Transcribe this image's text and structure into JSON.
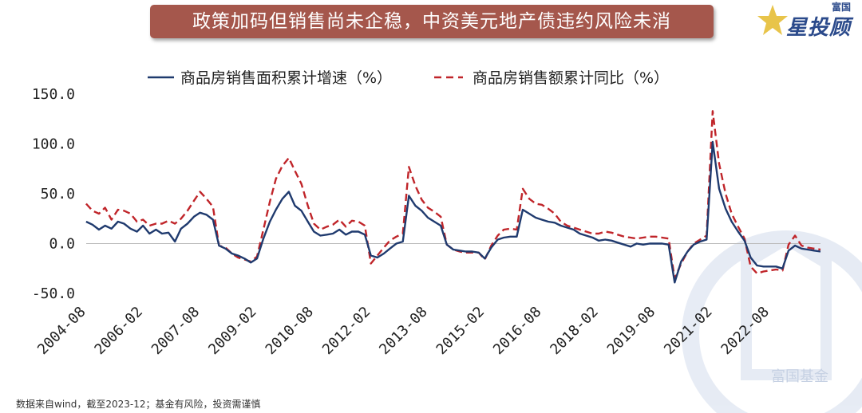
{
  "title": "政策加码但销售尚未企稳，中资美元地产债违约风险未消",
  "logo": {
    "top": "富国",
    "main": "星投顾"
  },
  "watermark": "富国基金",
  "source": "数据来自wind，截至2023-12；基金有风险，投资需谨慎",
  "chart_data": {
    "type": "line",
    "ylim": [
      -50,
      150
    ],
    "y_ticks": [
      "150.0",
      "100.0",
      "50.0",
      "0.0",
      "-50.0"
    ],
    "y_tick_values": [
      150,
      100,
      50,
      0,
      -50
    ],
    "x_tick_labels": [
      "2004-08",
      "2006-02",
      "2007-08",
      "2009-02",
      "2010-08",
      "2012-02",
      "2013-08",
      "2015-02",
      "2016-08",
      "2018-02",
      "2019-08",
      "2021-02",
      "2022-08"
    ],
    "x_tick_values": [
      2004.583,
      2006.083,
      2007.583,
      2009.083,
      2010.583,
      2012.083,
      2013.583,
      2015.083,
      2016.583,
      2018.083,
      2019.583,
      2021.083,
      2022.583
    ],
    "xlim": [
      2004.583,
      2023.92
    ],
    "legend_position": "top",
    "colors": {
      "area": "#1f3a6e",
      "sales": "#c0252a"
    },
    "series": [
      {
        "name": "商品房销售面积累计增速（%）",
        "style": "solid",
        "x": [
          2004.58,
          2004.75,
          2004.92,
          2005.08,
          2005.25,
          2005.42,
          2005.58,
          2005.75,
          2005.92,
          2006.08,
          2006.25,
          2006.42,
          2006.58,
          2006.75,
          2006.92,
          2007.08,
          2007.25,
          2007.42,
          2007.58,
          2007.75,
          2007.92,
          2008.08,
          2008.25,
          2008.42,
          2008.58,
          2008.75,
          2008.92,
          2009.08,
          2009.25,
          2009.42,
          2009.58,
          2009.75,
          2009.92,
          2010.08,
          2010.25,
          2010.42,
          2010.58,
          2010.75,
          2010.92,
          2011.08,
          2011.25,
          2011.42,
          2011.58,
          2011.75,
          2011.92,
          2012.08,
          2012.25,
          2012.42,
          2012.58,
          2012.75,
          2012.92,
          2013.08,
          2013.25,
          2013.42,
          2013.58,
          2013.75,
          2013.92,
          2014.08,
          2014.25,
          2014.42,
          2014.58,
          2014.75,
          2014.92,
          2015.08,
          2015.25,
          2015.42,
          2015.58,
          2015.75,
          2015.92,
          2016.08,
          2016.25,
          2016.42,
          2016.58,
          2016.75,
          2016.92,
          2017.08,
          2017.25,
          2017.42,
          2017.58,
          2017.75,
          2017.92,
          2018.08,
          2018.25,
          2018.42,
          2018.58,
          2018.75,
          2018.92,
          2019.08,
          2019.25,
          2019.42,
          2019.58,
          2019.75,
          2019.92,
          2020.08,
          2020.25,
          2020.42,
          2020.58,
          2020.75,
          2020.92,
          2021.08,
          2021.25,
          2021.42,
          2021.58,
          2021.75,
          2021.92,
          2022.08,
          2022.25,
          2022.42,
          2022.58,
          2022.75,
          2022.92,
          2023.08,
          2023.25,
          2023.42,
          2023.58,
          2023.75,
          2023.92
        ],
        "values": [
          22,
          19,
          14,
          18,
          15,
          22,
          20,
          15,
          12,
          18,
          10,
          14,
          10,
          11,
          2,
          15,
          20,
          27,
          31,
          29,
          24,
          -2,
          -5,
          -10,
          -12,
          -15,
          -19,
          -15,
          5,
          22,
          34,
          45,
          52,
          38,
          33,
          22,
          12,
          8,
          9,
          10,
          14,
          9,
          12,
          12,
          9,
          -12,
          -14,
          -10,
          -5,
          0,
          2,
          48,
          38,
          33,
          26,
          22,
          18,
          -1,
          -6,
          -7,
          -8,
          -8,
          -9,
          -15,
          -4,
          4,
          6,
          7,
          7,
          34,
          30,
          26,
          24,
          22,
          21,
          18,
          16,
          14,
          10,
          8,
          6,
          3,
          4,
          3,
          1,
          -1,
          -3,
          0,
          -1,
          0,
          0,
          0,
          -1,
          -39,
          -18,
          -8,
          -1,
          2,
          4,
          102,
          55,
          35,
          22,
          12,
          3,
          -14,
          -22,
          -23,
          -23,
          -23,
          -25,
          -7,
          -2,
          -5,
          -6,
          -7,
          -8
        ]
      },
      {
        "name": "商品房销售额累计同比（%）",
        "style": "dashed",
        "x": [
          2004.58,
          2004.75,
          2004.92,
          2005.08,
          2005.25,
          2005.42,
          2005.58,
          2005.75,
          2005.92,
          2006.08,
          2006.25,
          2006.42,
          2006.58,
          2006.75,
          2006.92,
          2007.08,
          2007.25,
          2007.42,
          2007.58,
          2007.75,
          2007.92,
          2008.08,
          2008.25,
          2008.42,
          2008.58,
          2008.75,
          2008.92,
          2009.08,
          2009.25,
          2009.42,
          2009.58,
          2009.75,
          2009.92,
          2010.08,
          2010.25,
          2010.42,
          2010.58,
          2010.75,
          2010.92,
          2011.08,
          2011.25,
          2011.42,
          2011.58,
          2011.75,
          2011.92,
          2012.08,
          2012.25,
          2012.42,
          2012.58,
          2012.75,
          2012.92,
          2013.08,
          2013.25,
          2013.42,
          2013.58,
          2013.75,
          2013.92,
          2014.08,
          2014.25,
          2014.42,
          2014.58,
          2014.75,
          2014.92,
          2015.08,
          2015.25,
          2015.42,
          2015.58,
          2015.75,
          2015.92,
          2016.08,
          2016.25,
          2016.42,
          2016.58,
          2016.75,
          2016.92,
          2017.08,
          2017.25,
          2017.42,
          2017.58,
          2017.75,
          2017.92,
          2018.08,
          2018.25,
          2018.42,
          2018.58,
          2018.75,
          2018.92,
          2019.08,
          2019.25,
          2019.42,
          2019.58,
          2019.75,
          2019.92,
          2020.08,
          2020.25,
          2020.42,
          2020.58,
          2020.75,
          2020.92,
          2021.08,
          2021.25,
          2021.42,
          2021.58,
          2021.75,
          2021.92,
          2022.08,
          2022.25,
          2022.42,
          2022.58,
          2022.75,
          2022.92,
          2023.08,
          2023.25,
          2023.42,
          2023.58,
          2023.75,
          2023.92
        ],
        "values": [
          40,
          33,
          30,
          36,
          24,
          34,
          33,
          30,
          22,
          24,
          18,
          20,
          20,
          23,
          20,
          25,
          33,
          43,
          52,
          45,
          37,
          -2,
          -4,
          -10,
          -14,
          -16,
          -18,
          -13,
          14,
          42,
          65,
          78,
          86,
          73,
          60,
          38,
          20,
          14,
          17,
          19,
          24,
          17,
          23,
          22,
          18,
          -20,
          -12,
          -4,
          3,
          7,
          10,
          77,
          58,
          44,
          36,
          32,
          27,
          -1,
          -6,
          -8,
          -9,
          -9,
          -9,
          -16,
          -2,
          8,
          14,
          15,
          14,
          55,
          45,
          40,
          39,
          35,
          30,
          22,
          18,
          16,
          14,
          12,
          10,
          10,
          12,
          11,
          9,
          7,
          6,
          5,
          6,
          7,
          7,
          6,
          5,
          -35,
          -20,
          -8,
          0,
          4,
          8,
          133,
          80,
          50,
          30,
          17,
          5,
          -23,
          -30,
          -28,
          -27,
          -26,
          -27,
          -1,
          8,
          -2,
          -4,
          -5,
          -6
        ]
      }
    ]
  }
}
